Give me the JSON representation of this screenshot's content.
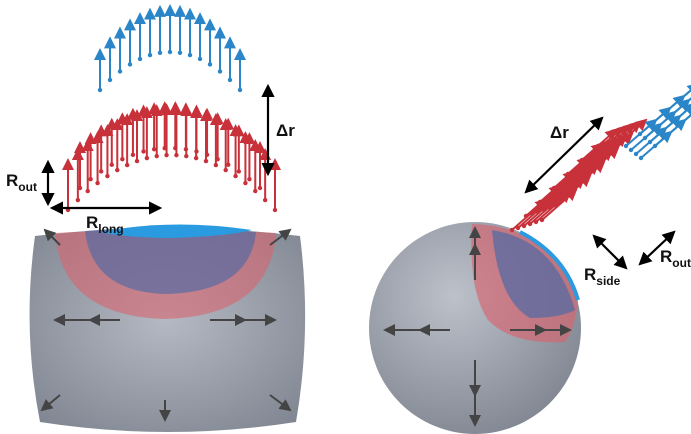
{
  "labels": {
    "left": {
      "r_out": {
        "main": "R",
        "sub": "out"
      },
      "r_long": {
        "main": "R",
        "sub": "long"
      },
      "delta_r": "Δr"
    },
    "right": {
      "delta_r": "Δr",
      "r_side": {
        "main": "R",
        "sub": "side"
      },
      "r_out": {
        "main": "R",
        "sub": "out"
      }
    }
  }
}
